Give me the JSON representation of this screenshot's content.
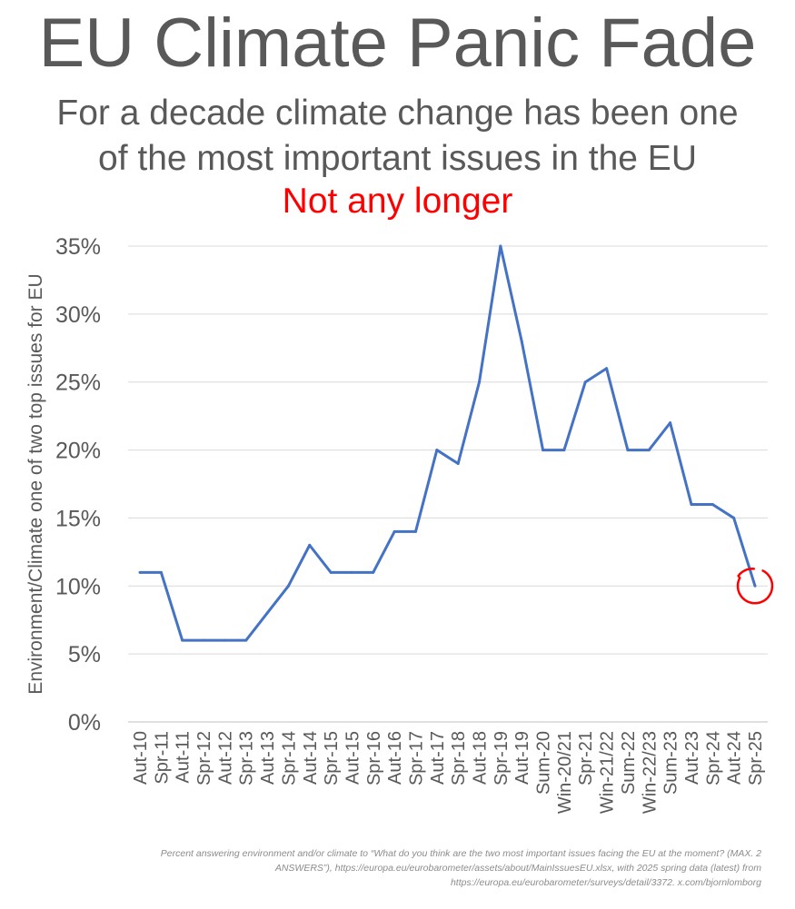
{
  "header": {
    "title": "EU Climate Panic Fade",
    "subtitle_line1": "For a decade climate change has been one",
    "subtitle_line2": "of the most important issues in the EU",
    "tagline": "Not any longer"
  },
  "footnote": {
    "line1": "Percent answering environment and/or climate to “What do you think are the two most important issues facing the EU at the moment? (MAX. 2",
    "line2": "ANSWERS”), https://europa.eu/eurobarometer/assets/about/MainIssuesEU.xlsx, with 2025 spring data (latest) from",
    "line3": "https://europa.eu/eurobarometer/surveys/detail/3372. x.com/bjornlomborg"
  },
  "chart_data": {
    "type": "line",
    "title": "EU Climate Panic Fade",
    "ylabel": "Environment/Climate one of two top issues for EU",
    "xlabel": "",
    "ylim": [
      0,
      35
    ],
    "yticks": [
      "0%",
      "5%",
      "10%",
      "15%",
      "20%",
      "25%",
      "30%",
      "35%"
    ],
    "ytick_values": [
      0,
      5,
      10,
      15,
      20,
      25,
      30,
      35
    ],
    "grid": true,
    "line_color": "#4472c4",
    "highlight_color": "#ff0000",
    "categories": [
      "Aut-10",
      "Spr-11",
      "Aut-11",
      "Spr-12",
      "Aut-12",
      "Spr-13",
      "Aut-13",
      "Spr-14",
      "Aut-14",
      "Spr-15",
      "Aut-15",
      "Spr-16",
      "Aut-16",
      "Spr-17",
      "Aut-17",
      "Spr-18",
      "Aut-18",
      "Spr-19",
      "Aut-19",
      "Sum-20",
      "Win-20/21",
      "Spr-21",
      "Win-21/22",
      "Sum-22",
      "Win-22/23",
      "Sum-23",
      "Aut-23",
      "Spr-24",
      "Aut-24",
      "Spr-25"
    ],
    "tick_label_indices": [
      0,
      1,
      2,
      3,
      4,
      5,
      6,
      7,
      8,
      9,
      10,
      11,
      12,
      13,
      14,
      15,
      16,
      17,
      18,
      19,
      20,
      21,
      22,
      23,
      24,
      25,
      26,
      27,
      28,
      29
    ],
    "values": [
      11,
      11,
      6,
      6,
      6,
      6,
      8,
      10,
      13,
      11,
      11,
      11,
      14,
      14,
      20,
      19,
      25,
      35,
      28,
      20,
      20,
      25,
      26,
      20,
      20,
      22,
      16,
      16,
      15,
      10
    ],
    "highlight_index": 29
  }
}
